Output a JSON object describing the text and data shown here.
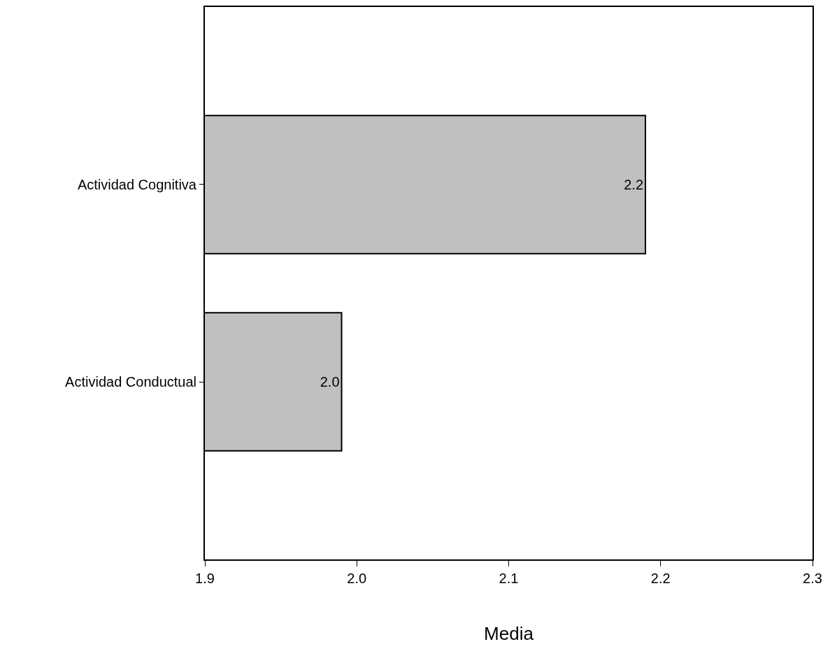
{
  "chart_data": {
    "type": "bar",
    "orientation": "horizontal",
    "categories": [
      "Actividad Cognitiva",
      "Actividad Conductual"
    ],
    "values": [
      2.19,
      1.99
    ],
    "value_labels": [
      "2.2",
      "2.0"
    ],
    "color": "#c0c0c0",
    "xlabel": "Media",
    "xlim": [
      1.9,
      2.3
    ],
    "xticks": [
      {
        "value": 1.9,
        "label": "1.9"
      },
      {
        "value": 2.0,
        "label": "2.0"
      },
      {
        "value": 2.1,
        "label": "2.1"
      },
      {
        "value": 2.2,
        "label": "2.2"
      },
      {
        "value": 2.3,
        "label": "2.3"
      }
    ],
    "grid": false,
    "legend": false
  }
}
